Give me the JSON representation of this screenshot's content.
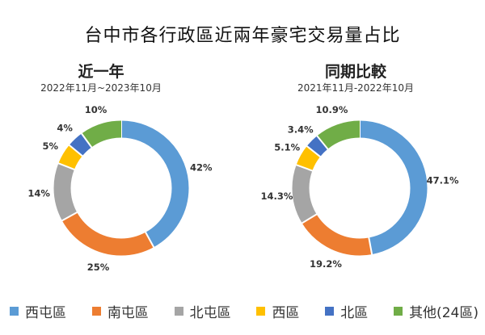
{
  "title": "台中市各行政區近兩年豪宅交易量占比",
  "chart_data": [
    {
      "type": "pie",
      "title": "近一年",
      "subtitle": "2022年11月~2023年10月",
      "categories": [
        "西屯區",
        "南屯區",
        "北屯區",
        "西區",
        "北區",
        "其他(24區)"
      ],
      "values": [
        42,
        25,
        14,
        5,
        4,
        10
      ],
      "labels": [
        "42%",
        "25%",
        "14%",
        "5%",
        "4%",
        "10%"
      ]
    },
    {
      "type": "pie",
      "title": "同期比較",
      "subtitle": "2021年11月-2022年10月",
      "categories": [
        "西屯區",
        "南屯區",
        "北屯區",
        "西區",
        "北區",
        "其他(24區)"
      ],
      "values": [
        47.1,
        19.2,
        14.3,
        5.1,
        3.4,
        10.9
      ],
      "labels": [
        "47.1%",
        "19.2%",
        "14.3%",
        "5.1%",
        "3.4%",
        "10.9%"
      ]
    }
  ],
  "legend": [
    {
      "label": "西屯區",
      "color": "#5b9bd5"
    },
    {
      "label": "南屯區",
      "color": "#ed7d31"
    },
    {
      "label": "北屯區",
      "color": "#a5a5a5"
    },
    {
      "label": "西區",
      "color": "#ffc000"
    },
    {
      "label": "北區",
      "color": "#4472c4"
    },
    {
      "label": "其他(24區)",
      "color": "#70ad47"
    }
  ]
}
